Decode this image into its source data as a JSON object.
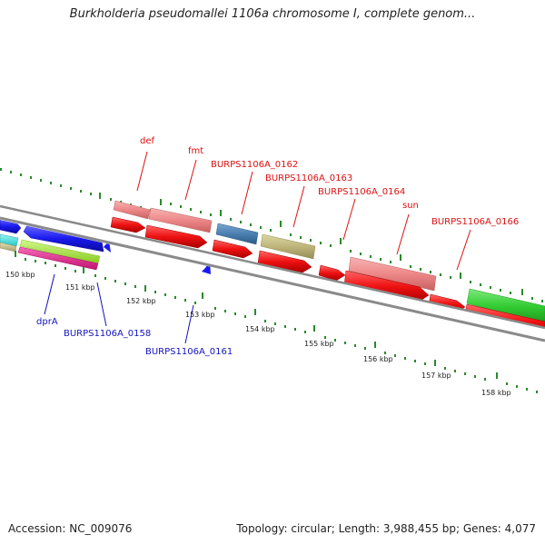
{
  "title": "Burkholderia pseudomallei 1106a chromosome I, complete genom...",
  "footer": {
    "accession": "Accession: NC_009076",
    "info": "Topology: circular; Length: 3,988,455 bp; Genes: 4,077"
  },
  "ticks": [
    "150 kbp",
    "151 kbp",
    "152 kbp",
    "153 kbp",
    "154 kbp",
    "155 kbp",
    "156 kbp",
    "157 kbp",
    "158 kbp"
  ],
  "gene_labels": {
    "def": "def",
    "fmt": "fmt",
    "g0162": "BURPS1106A_0162",
    "g0163": "BURPS1106A_0163",
    "g0164": "BURPS1106A_0164",
    "sun": "sun",
    "g0166": "BURPS1106A_0166",
    "dprA": "dprA",
    "g0158": "BURPS1106A_0158",
    "g0161": "BURPS1106A_0161"
  },
  "colors": {
    "red": "#ee1111",
    "pink": "#ee8888",
    "steelblue": "#4a7fb0",
    "olive": "#bdb57a",
    "green": "#33cc33",
    "blue": "#1a1aee",
    "cyan": "#33e6e6",
    "lime": "#aaee44",
    "magenta": "#ee2299",
    "backbone": "#888888",
    "tickgreen": "#2a8a2a"
  }
}
